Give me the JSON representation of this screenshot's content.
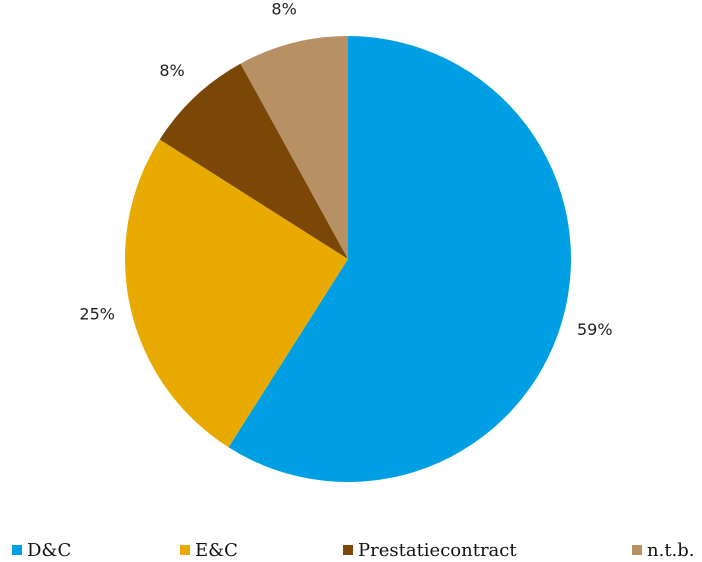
{
  "chart_data": {
    "type": "pie",
    "title": "",
    "categories": [
      "D&C",
      "E&C",
      "Prestatiecontract",
      "n.t.b."
    ],
    "values": [
      59,
      25,
      8,
      8
    ],
    "labels": [
      "59%",
      "25%",
      "8%",
      "8%"
    ],
    "colors": [
      "#009FE3",
      "#E8A900",
      "#7A4706",
      "#B79063"
    ],
    "legend_placement": "bottom"
  }
}
